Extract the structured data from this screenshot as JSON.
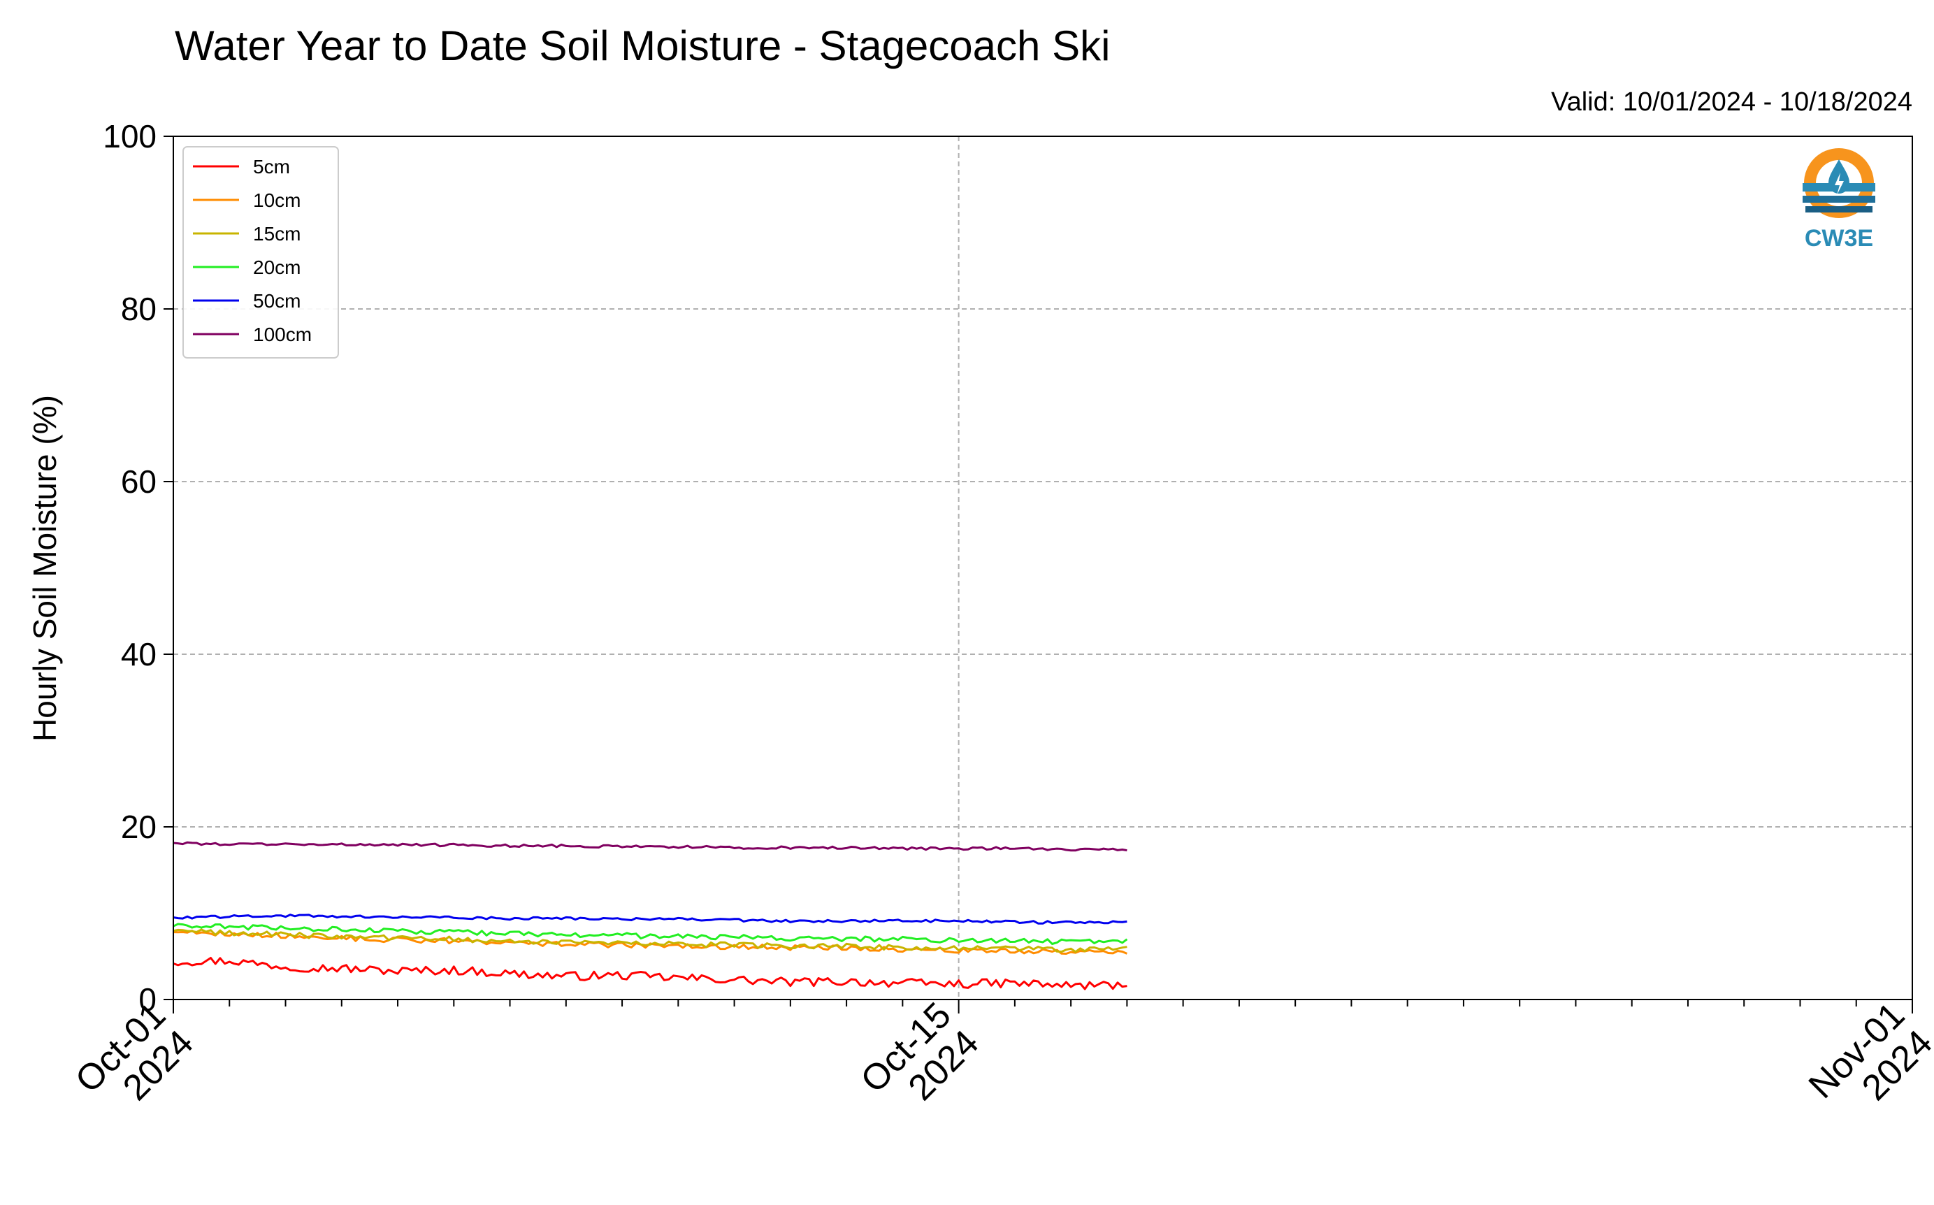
{
  "chart_data": {
    "type": "line",
    "title": "Water Year to Date Soil Moisture - Stagecoach Ski",
    "subtitle": "Valid: 10/01/2024 - 10/18/2024",
    "ylabel": "Hourly Soil Moisture (%)",
    "xlabel": "",
    "ylim": [
      0,
      100
    ],
    "xlim": [
      "2024-10-01",
      "2024-11-01"
    ],
    "y_ticks": [
      0,
      20,
      40,
      60,
      80,
      100
    ],
    "y_tick_labels": [
      "0",
      "20",
      "40",
      "60",
      "80",
      "100"
    ],
    "x_major_ticks": [
      {
        "date": "2024-10-01",
        "line1": "Oct-01",
        "line2": "2024"
      },
      {
        "date": "2024-10-15",
        "line1": "Oct-15",
        "line2": "2024"
      },
      {
        "date": "2024-11-01",
        "line1": "Nov-01",
        "line2": "2024"
      }
    ],
    "x_minor_tick_dates": [
      "2024-10-02",
      "2024-10-03",
      "2024-10-04",
      "2024-10-05",
      "2024-10-06",
      "2024-10-07",
      "2024-10-08",
      "2024-10-09",
      "2024-10-10",
      "2024-10-11",
      "2024-10-12",
      "2024-10-13",
      "2024-10-14",
      "2024-10-16",
      "2024-10-17",
      "2024-10-18",
      "2024-10-19",
      "2024-10-20",
      "2024-10-21",
      "2024-10-22",
      "2024-10-23",
      "2024-10-24",
      "2024-10-25",
      "2024-10-26",
      "2024-10-27",
      "2024-10-28",
      "2024-10-29",
      "2024-10-30",
      "2024-10-31"
    ],
    "grid": true,
    "grid_style": "dashed",
    "legend_position": "top-left",
    "logo_text": "CW3E",
    "series": [
      {
        "name": "5cm",
        "color": "#ff0000",
        "x": [
          "2024-10-01",
          "2024-10-02",
          "2024-10-03",
          "2024-10-04",
          "2024-10-05",
          "2024-10-06",
          "2024-10-07",
          "2024-10-08",
          "2024-10-09",
          "2024-10-10",
          "2024-10-11",
          "2024-10-12",
          "2024-10-13",
          "2024-10-14",
          "2024-10-15",
          "2024-10-16",
          "2024-10-17",
          "2024-10-18"
        ],
        "y": [
          4.4,
          4.5,
          3.8,
          3.6,
          3.3,
          3.4,
          3.0,
          2.7,
          2.8,
          2.5,
          2.3,
          2.0,
          2.1,
          1.9,
          1.8,
          1.9,
          1.6,
          1.7
        ],
        "noise": 0.5
      },
      {
        "name": "10cm",
        "color": "#ff8c00",
        "x": [
          "2024-10-01",
          "2024-10-02",
          "2024-10-03",
          "2024-10-04",
          "2024-10-05",
          "2024-10-06",
          "2024-10-07",
          "2024-10-08",
          "2024-10-09",
          "2024-10-10",
          "2024-10-11",
          "2024-10-12",
          "2024-10-13",
          "2024-10-14",
          "2024-10-15",
          "2024-10-16",
          "2024-10-17",
          "2024-10-18"
        ],
        "y": [
          7.9,
          7.6,
          7.4,
          7.1,
          6.9,
          6.8,
          6.6,
          6.4,
          6.3,
          6.2,
          6.1,
          6.0,
          6.0,
          5.8,
          5.7,
          5.6,
          5.5,
          5.5
        ],
        "noise": 0.3
      },
      {
        "name": "15cm",
        "color": "#c8b400",
        "x": [
          "2024-10-01",
          "2024-10-02",
          "2024-10-03",
          "2024-10-04",
          "2024-10-05",
          "2024-10-06",
          "2024-10-07",
          "2024-10-08",
          "2024-10-09",
          "2024-10-10",
          "2024-10-11",
          "2024-10-12",
          "2024-10-13",
          "2024-10-14",
          "2024-10-15",
          "2024-10-16",
          "2024-10-17",
          "2024-10-18"
        ],
        "y": [
          8.0,
          7.7,
          7.5,
          7.3,
          7.1,
          7.0,
          6.8,
          6.6,
          6.5,
          6.4,
          6.3,
          6.2,
          6.2,
          6.0,
          5.9,
          5.9,
          5.8,
          5.8
        ],
        "noise": 0.3
      },
      {
        "name": "20cm",
        "color": "#22ee22",
        "x": [
          "2024-10-01",
          "2024-10-02",
          "2024-10-03",
          "2024-10-04",
          "2024-10-05",
          "2024-10-06",
          "2024-10-07",
          "2024-10-08",
          "2024-10-09",
          "2024-10-10",
          "2024-10-11",
          "2024-10-12",
          "2024-10-13",
          "2024-10-14",
          "2024-10-15",
          "2024-10-16",
          "2024-10-17",
          "2024-10-18"
        ],
        "y": [
          8.5,
          8.4,
          8.3,
          8.1,
          7.9,
          7.8,
          7.6,
          7.5,
          7.4,
          7.3,
          7.2,
          7.1,
          7.0,
          7.0,
          6.8,
          6.8,
          6.7,
          6.8
        ],
        "noise": 0.3
      },
      {
        "name": "50cm",
        "color": "#0000ee",
        "x": [
          "2024-10-01",
          "2024-10-02",
          "2024-10-03",
          "2024-10-04",
          "2024-10-05",
          "2024-10-06",
          "2024-10-07",
          "2024-10-08",
          "2024-10-09",
          "2024-10-10",
          "2024-10-11",
          "2024-10-12",
          "2024-10-13",
          "2024-10-14",
          "2024-10-15",
          "2024-10-16",
          "2024-10-17",
          "2024-10-18"
        ],
        "y": [
          9.5,
          9.6,
          9.7,
          9.6,
          9.5,
          9.5,
          9.4,
          9.4,
          9.3,
          9.3,
          9.2,
          9.1,
          9.1,
          9.1,
          9.1,
          9.0,
          8.9,
          9.0
        ],
        "noise": 0.15
      },
      {
        "name": "100cm",
        "color": "#800060",
        "x": [
          "2024-10-01",
          "2024-10-02",
          "2024-10-03",
          "2024-10-04",
          "2024-10-05",
          "2024-10-06",
          "2024-10-07",
          "2024-10-08",
          "2024-10-09",
          "2024-10-10",
          "2024-10-11",
          "2024-10-12",
          "2024-10-13",
          "2024-10-14",
          "2024-10-15",
          "2024-10-16",
          "2024-10-17",
          "2024-10-18"
        ],
        "y": [
          18.1,
          18.0,
          18.0,
          18.0,
          17.9,
          17.9,
          17.8,
          17.8,
          17.7,
          17.7,
          17.6,
          17.6,
          17.6,
          17.5,
          17.5,
          17.5,
          17.4,
          17.3
        ],
        "noise": 0.15
      }
    ]
  }
}
